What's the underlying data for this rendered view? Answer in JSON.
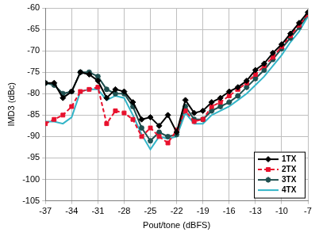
{
  "chart_data": {
    "type": "line",
    "x_label": "Pout/tone (dBFS)",
    "y_label": "IMD3 (dBc)",
    "x": [
      -37,
      -36,
      -35,
      -34,
      -33,
      -32,
      -31,
      -30,
      -29,
      -28,
      -27,
      -26,
      -25,
      -24,
      -23,
      -22,
      -21,
      -20,
      -19,
      -18,
      -17,
      -16,
      -15,
      -14,
      -13,
      -12,
      -11,
      -10,
      -9,
      -8,
      -7
    ],
    "series": [
      {
        "name": "1TX",
        "color": "#000000",
        "marker": "diamond",
        "line_style": "solid",
        "values": [
          -77.5,
          -77.5,
          -81,
          -79.5,
          -75,
          -75.5,
          -77,
          -81,
          -79,
          -79.5,
          -82,
          -86,
          -85.5,
          -87.5,
          -85,
          -89,
          -81.5,
          -84.5,
          -84,
          -82,
          -81,
          -79.5,
          -78.5,
          -77,
          -74.5,
          -73,
          -70.5,
          -68.5,
          -66,
          -63.5,
          -61
        ]
      },
      {
        "name": "2TX",
        "color": "#e8112d",
        "marker": "square",
        "line_style": "dashed",
        "values": [
          -87,
          -86,
          -85,
          -83,
          -79.5,
          -79,
          -78.5,
          -87,
          -84,
          -84.5,
          -86,
          -90,
          -88,
          -90,
          -91.5,
          -88.5,
          -84,
          -86.5,
          -86,
          -83,
          -82,
          -80.5,
          -79,
          -77.5,
          -75.5,
          -73.5,
          -71.5,
          -69,
          -66.5,
          -64,
          -61.5
        ]
      },
      {
        "name": "3TX",
        "color": "#1f4f4f",
        "marker": "star",
        "line_style": "solid",
        "values": [
          -77.5,
          -78,
          -80,
          -79.5,
          -75,
          -75,
          -76,
          -79,
          -80,
          -80,
          -83,
          -88,
          -91,
          -89,
          -90,
          -89.5,
          -83,
          -86,
          -86,
          -84,
          -83,
          -82,
          -80.5,
          -78.5,
          -76.5,
          -74.5,
          -72,
          -69.5,
          -67,
          -64.5,
          -61.5
        ]
      },
      {
        "name": "4TX",
        "color": "#33b5c8",
        "marker": "none",
        "line_style": "solid",
        "values": [
          -86.5,
          -86.5,
          -87,
          -85.5,
          -79.5,
          -79,
          -79,
          -81.5,
          -80.5,
          -81,
          -85,
          -89.5,
          -93,
          -90,
          -90.5,
          -90,
          -84.5,
          -87,
          -87,
          -85,
          -84,
          -83,
          -81.5,
          -80,
          -78,
          -76,
          -73.5,
          -71,
          -68,
          -65.5,
          -62
        ]
      }
    ],
    "xlim": [
      -37,
      -7
    ],
    "xticks": [
      -37,
      -34,
      -31,
      -28,
      -25,
      -22,
      -19,
      -16,
      -13,
      -10,
      -7
    ],
    "ylim": [
      -105,
      -60
    ],
    "yticks": [
      -105,
      -100,
      -95,
      -90,
      -85,
      -80,
      -75,
      -70,
      -65,
      -60
    ],
    "grid": true,
    "legend": "lower right"
  }
}
